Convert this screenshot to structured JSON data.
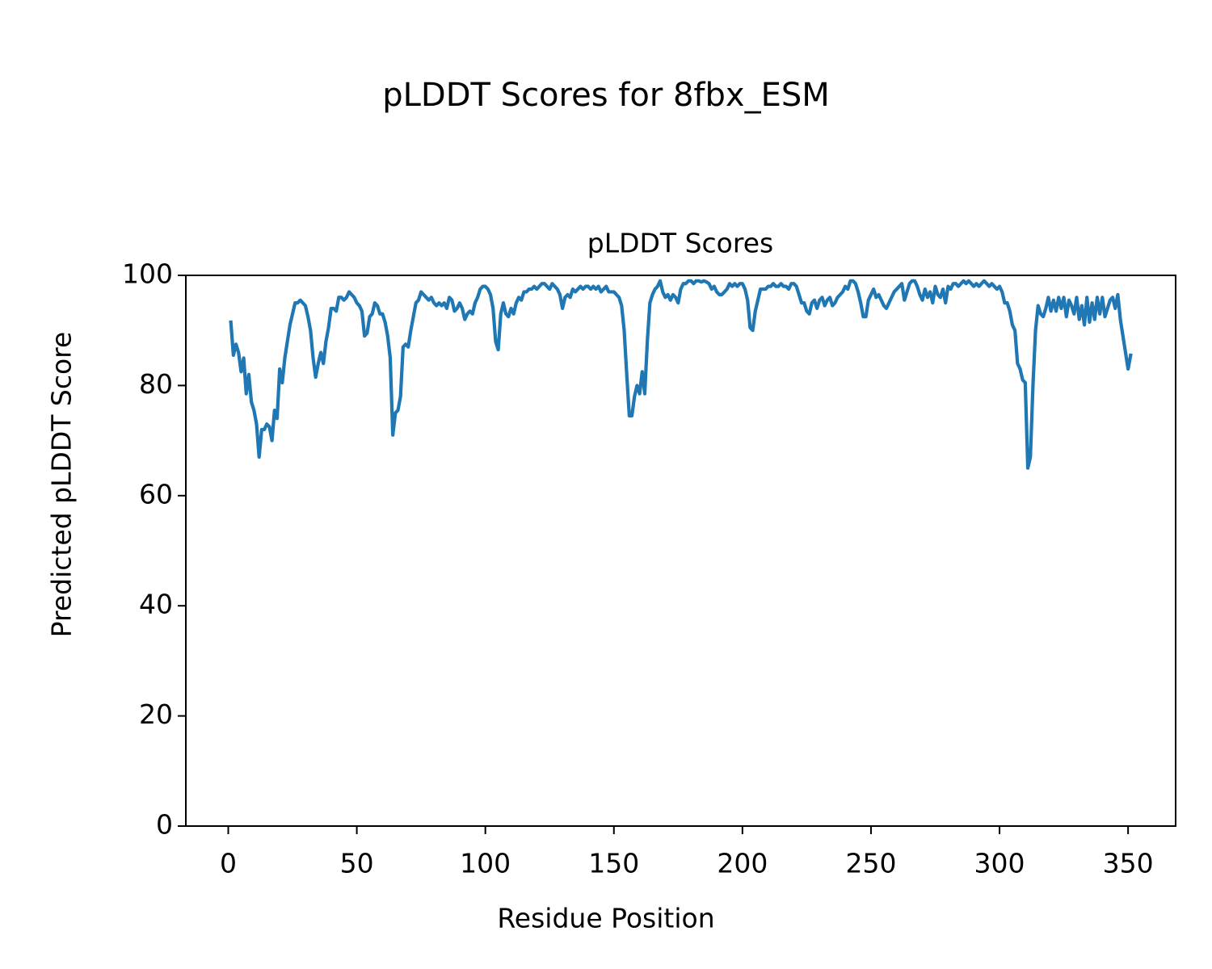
{
  "chart_data": {
    "type": "line",
    "suptitle": "pLDDT Scores for 8fbx_ESM",
    "title": "pLDDT Scores",
    "xlabel": "Residue Position",
    "ylabel": "Predicted pLDDT Score",
    "xlim": [
      -16.5,
      368.5
    ],
    "xticks": [
      0,
      50,
      100,
      150,
      200,
      250,
      300,
      350
    ],
    "ylim": [
      0,
      100
    ],
    "yticks": [
      0,
      20,
      40,
      60,
      80,
      100
    ],
    "grid": false,
    "x": [
      1,
      2,
      3,
      4,
      5,
      6,
      7,
      8,
      9,
      10,
      11,
      12,
      13,
      14,
      15,
      16,
      17,
      18,
      19,
      20,
      21,
      22,
      23,
      24,
      25,
      26,
      27,
      28,
      29,
      30,
      31,
      32,
      33,
      34,
      35,
      36,
      37,
      38,
      39,
      40,
      41,
      42,
      43,
      44,
      45,
      46,
      47,
      48,
      49,
      50,
      51,
      52,
      53,
      54,
      55,
      56,
      57,
      58,
      59,
      60,
      61,
      62,
      63,
      64,
      65,
      66,
      67,
      68,
      69,
      70,
      71,
      72,
      73,
      74,
      75,
      76,
      77,
      78,
      79,
      80,
      81,
      82,
      83,
      84,
      85,
      86,
      87,
      88,
      89,
      90,
      91,
      92,
      93,
      94,
      95,
      96,
      97,
      98,
      99,
      100,
      101,
      102,
      103,
      104,
      105,
      106,
      107,
      108,
      109,
      110,
      111,
      112,
      113,
      114,
      115,
      116,
      117,
      118,
      119,
      120,
      121,
      122,
      123,
      124,
      125,
      126,
      127,
      128,
      129,
      130,
      131,
      132,
      133,
      134,
      135,
      136,
      137,
      138,
      139,
      140,
      141,
      142,
      143,
      144,
      145,
      146,
      147,
      148,
      149,
      150,
      151,
      152,
      153,
      154,
      155,
      156,
      157,
      158,
      159,
      160,
      161,
      162,
      163,
      164,
      165,
      166,
      167,
      168,
      169,
      170,
      171,
      172,
      173,
      174,
      175,
      176,
      177,
      178,
      179,
      180,
      181,
      182,
      183,
      184,
      185,
      186,
      187,
      188,
      189,
      190,
      191,
      192,
      193,
      194,
      195,
      196,
      197,
      198,
      199,
      200,
      201,
      202,
      203,
      204,
      205,
      206,
      207,
      208,
      209,
      210,
      211,
      212,
      213,
      214,
      215,
      216,
      217,
      218,
      219,
      220,
      221,
      222,
      223,
      224,
      225,
      226,
      227,
      228,
      229,
      230,
      231,
      232,
      233,
      234,
      235,
      236,
      237,
      238,
      239,
      240,
      241,
      242,
      243,
      244,
      245,
      246,
      247,
      248,
      249,
      250,
      251,
      252,
      253,
      254,
      255,
      256,
      257,
      258,
      259,
      260,
      261,
      262,
      263,
      264,
      265,
      266,
      267,
      268,
      269,
      270,
      271,
      272,
      273,
      274,
      275,
      276,
      277,
      278,
      279,
      280,
      281,
      282,
      283,
      284,
      285,
      286,
      287,
      288,
      289,
      290,
      291,
      292,
      293,
      294,
      295,
      296,
      297,
      298,
      299,
      300,
      301,
      302,
      303,
      304,
      305,
      306,
      307,
      308,
      309,
      310,
      311,
      312,
      313,
      314,
      315,
      316,
      317,
      318,
      319,
      320,
      321,
      322,
      323,
      324,
      325,
      326,
      327,
      328,
      329,
      330,
      331,
      332,
      333,
      334,
      335,
      336,
      337,
      338,
      339,
      340,
      341,
      342,
      343,
      344,
      345,
      346,
      347,
      348,
      349,
      350,
      351
    ],
    "series": [
      {
        "color": "#1f77b4",
        "values": [
          91.5,
          85.5,
          87.5,
          86,
          82.5,
          85,
          78.5,
          82,
          77,
          75.5,
          73,
          67,
          72,
          72,
          73,
          72.5,
          70,
          75.5,
          74,
          83,
          80.5,
          85,
          88,
          91,
          93,
          95,
          95,
          95.5,
          95,
          94.5,
          92.5,
          90,
          85,
          81.5,
          84,
          86,
          84,
          88,
          90.5,
          94,
          94,
          93.5,
          96,
          96,
          95.5,
          96,
          97,
          96.5,
          96,
          95,
          94.5,
          93.5,
          89,
          89.5,
          92.5,
          93,
          95,
          94.5,
          93,
          93,
          91.5,
          89,
          85,
          71,
          75,
          75.5,
          78,
          87,
          87.5,
          87,
          90,
          92.5,
          95,
          95.5,
          97,
          96.5,
          96,
          95.5,
          96,
          95,
          94.5,
          95,
          94.5,
          95,
          94,
          96,
          95.5,
          93.5,
          94,
          95,
          94,
          92,
          93,
          93.5,
          93,
          95,
          96,
          97.5,
          98,
          98,
          97.5,
          96.5,
          94,
          88,
          86.5,
          93,
          95,
          93,
          92.5,
          94,
          93,
          95,
          96,
          95.5,
          97,
          97,
          97.5,
          97.5,
          98,
          97.5,
          98,
          98.5,
          98.5,
          98,
          97.5,
          98.5,
          98,
          97.5,
          96.5,
          94,
          96,
          96.5,
          96,
          97.5,
          97,
          97.5,
          98,
          97.5,
          98,
          98,
          97.5,
          98,
          97.5,
          98,
          97,
          97.5,
          98,
          97,
          97,
          97,
          96.5,
          96,
          94.5,
          90,
          82,
          74.5,
          74.5,
          78,
          80,
          78.5,
          82.5,
          78.5,
          88,
          95,
          96.5,
          97.5,
          98,
          99,
          97,
          96,
          96.5,
          95.5,
          96.5,
          96,
          95,
          97.5,
          98.5,
          98.5,
          99,
          99,
          98.5,
          99,
          99,
          98.8,
          99,
          98.8,
          98.5,
          97.5,
          98,
          97,
          96.5,
          96.5,
          97,
          97.5,
          98.5,
          98,
          98.5,
          98,
          98.5,
          98.5,
          97.5,
          95.5,
          90.5,
          90,
          93.5,
          95.5,
          97.5,
          97.5,
          97.5,
          98,
          98,
          98.5,
          98,
          98,
          98.5,
          98,
          98,
          97.5,
          98.5,
          98.5,
          98,
          96.5,
          95,
          95,
          93.5,
          93,
          95,
          95.5,
          94,
          95.5,
          96,
          94.5,
          95.5,
          96,
          94.5,
          95,
          96,
          96.5,
          97,
          98,
          97.5,
          99,
          99,
          98.5,
          97,
          95,
          92.5,
          92.5,
          95.5,
          96.5,
          97.5,
          96,
          96.5,
          95.5,
          94.5,
          94,
          95,
          96,
          97,
          97.5,
          98,
          98.5,
          95.5,
          97,
          98.5,
          99,
          99,
          98,
          96.5,
          95.5,
          97.5,
          96,
          97,
          95,
          98,
          96.5,
          96,
          97.5,
          95,
          98,
          97.5,
          98.5,
          98.5,
          98,
          98.5,
          99,
          98.5,
          99,
          98.5,
          98,
          98.5,
          98,
          98.5,
          99,
          98.5,
          98,
          98.5,
          98,
          97.5,
          98,
          97,
          95,
          95,
          93.5,
          91,
          90,
          84,
          83,
          81,
          80.5,
          65,
          67,
          80,
          90,
          94.5,
          93,
          92.5,
          94,
          96,
          93.5,
          95.5,
          93.5,
          96,
          94,
          96,
          92.5,
          95.5,
          94.5,
          93,
          96,
          92,
          94.5,
          91,
          96,
          91.5,
          95,
          92,
          96,
          93,
          96,
          92.5,
          94,
          95.5,
          96,
          94,
          96.5,
          92,
          89,
          86,
          83,
          85.5
        ]
      }
    ]
  }
}
